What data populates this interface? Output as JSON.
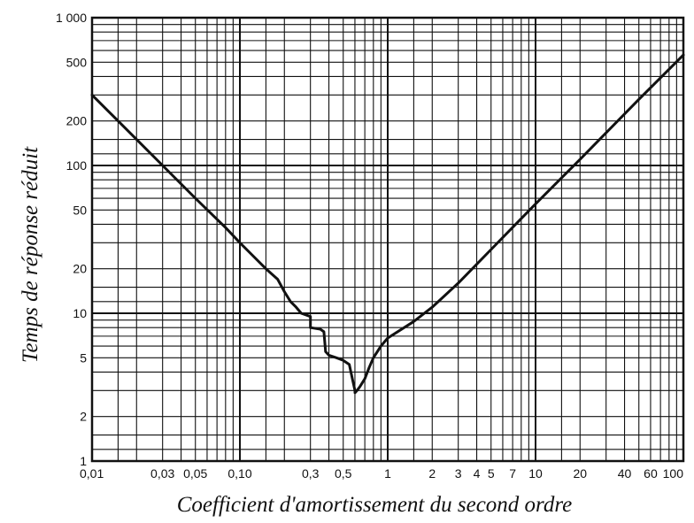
{
  "chart_data": {
    "type": "line",
    "title": "",
    "xlabel": "Coefficient d'amortissement du second ordre",
    "ylabel": "Temps de réponse réduit",
    "xscale": "log",
    "yscale": "log",
    "xlim": [
      0.01,
      100
    ],
    "ylim": [
      1,
      1000
    ],
    "grid": true,
    "legend": "none",
    "x_ticks": [
      {
        "value": 0.01,
        "label": "0,01"
      },
      {
        "value": 0.03,
        "label": "0,03"
      },
      {
        "value": 0.05,
        "label": "0,05"
      },
      {
        "value": 0.1,
        "label": "0,10"
      },
      {
        "value": 0.3,
        "label": "0,3"
      },
      {
        "value": 0.5,
        "label": "0,5"
      },
      {
        "value": 1,
        "label": "1"
      },
      {
        "value": 2,
        "label": "2"
      },
      {
        "value": 3,
        "label": "3"
      },
      {
        "value": 4,
        "label": "4"
      },
      {
        "value": 5,
        "label": "5"
      },
      {
        "value": 7,
        "label": "7"
      },
      {
        "value": 10,
        "label": "10"
      },
      {
        "value": 20,
        "label": "20"
      },
      {
        "value": 40,
        "label": "40"
      },
      {
        "value": 60,
        "label": "60"
      },
      {
        "value": 100,
        "label": "100"
      }
    ],
    "y_ticks": [
      {
        "value": 1,
        "label": "1"
      },
      {
        "value": 2,
        "label": "2"
      },
      {
        "value": 5,
        "label": "5"
      },
      {
        "value": 10,
        "label": "10"
      },
      {
        "value": 20,
        "label": "20"
      },
      {
        "value": 50,
        "label": "50"
      },
      {
        "value": 100,
        "label": "100"
      },
      {
        "value": 200,
        "label": "200"
      },
      {
        "value": 500,
        "label": "500"
      },
      {
        "value": 1000,
        "label": "1 000"
      }
    ],
    "series": [
      {
        "color": "#111111",
        "x": [
          0.01,
          0.02,
          0.03,
          0.05,
          0.08,
          0.1,
          0.12,
          0.15,
          0.18,
          0.2,
          0.22,
          0.24,
          0.26,
          0.3,
          0.3,
          0.35,
          0.37,
          0.38,
          0.4,
          0.45,
          0.5,
          0.55,
          0.58,
          0.6,
          0.6,
          0.62,
          0.65,
          0.7,
          0.75,
          0.8,
          0.9,
          1,
          1.5,
          2,
          3,
          5,
          10,
          20,
          50,
          100
        ],
        "y": [
          300,
          150,
          100,
          60,
          38,
          30,
          25,
          20,
          17,
          14,
          12,
          11,
          10,
          9.5,
          8,
          7.8,
          7.5,
          5.5,
          5.2,
          5,
          4.8,
          4.5,
          3.5,
          3,
          2.9,
          3,
          3.2,
          3.6,
          4.3,
          5,
          6,
          6.8,
          8.8,
          11,
          16,
          27,
          55,
          110,
          280,
          560
        ]
      }
    ]
  }
}
